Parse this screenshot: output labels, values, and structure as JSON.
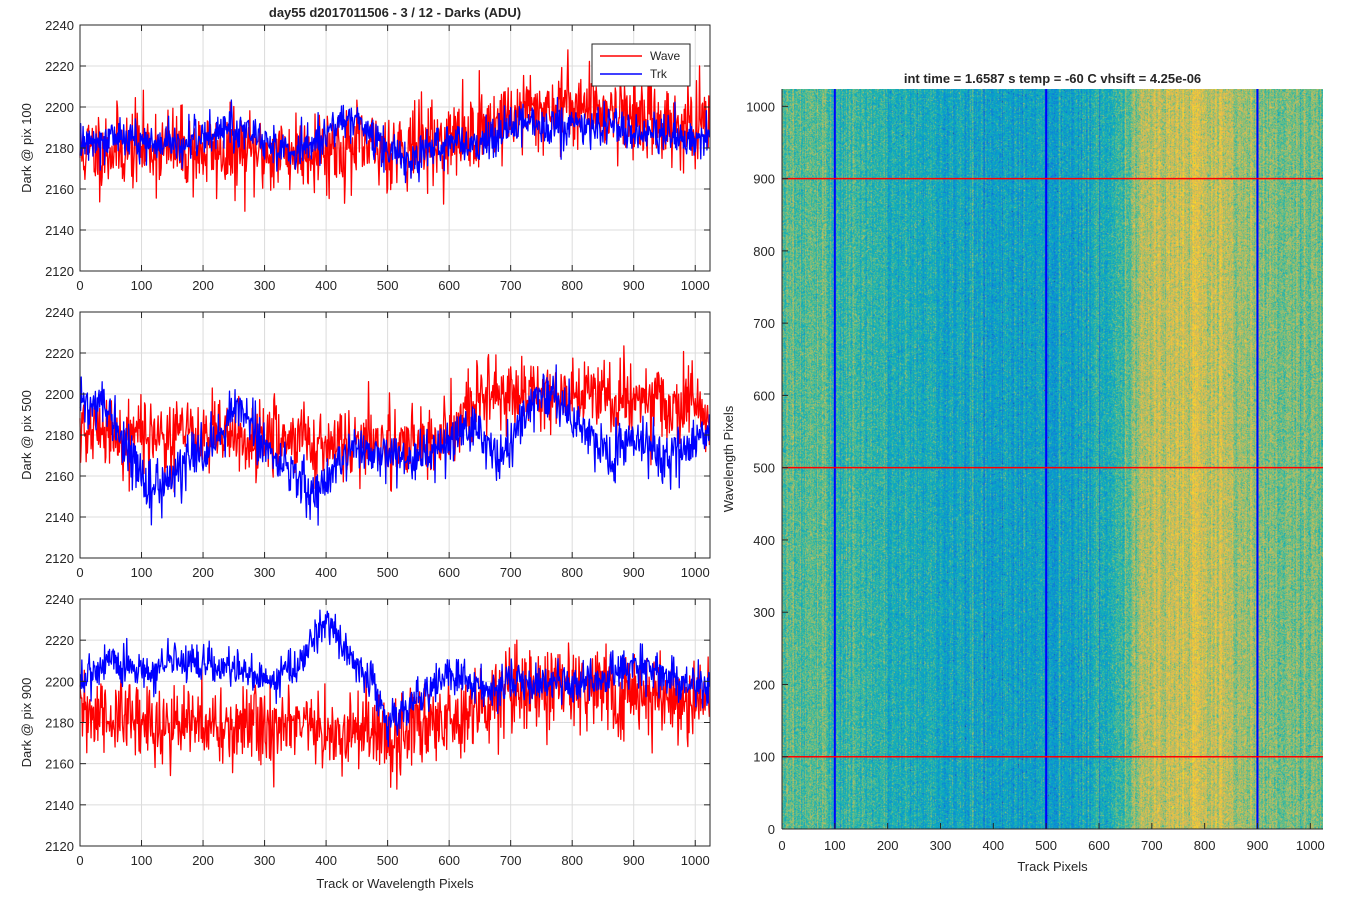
{
  "figure": {
    "title": "day55 d2017011506 - 3 / 12 - Darks (ADU)"
  },
  "chart_data": [
    {
      "id": "panel-pix100",
      "type": "line",
      "ylabel": "Dark @ pix 100",
      "xlabel": "",
      "xlim": [
        0,
        1024
      ],
      "ylim": [
        2120,
        2240
      ],
      "xticks": [
        0,
        100,
        200,
        300,
        400,
        500,
        600,
        700,
        800,
        900,
        1000
      ],
      "yticks": [
        2120,
        2140,
        2160,
        2180,
        2200,
        2220,
        2240
      ],
      "grid": true,
      "legend": {
        "show": true,
        "placement": "top-right"
      },
      "series": [
        {
          "name": "Wave",
          "color": "#ff0000",
          "mean": [
            [
              0,
              2178
            ],
            [
              100,
              2181
            ],
            [
              200,
              2178
            ],
            [
              300,
              2177
            ],
            [
              400,
              2180
            ],
            [
              500,
              2180
            ],
            [
              600,
              2183
            ],
            [
              660,
              2190
            ],
            [
              700,
              2196
            ],
            [
              800,
              2202
            ],
            [
              900,
              2196
            ],
            [
              1024,
              2188
            ]
          ],
          "noise_sd": 10,
          "seed": 11
        },
        {
          "name": "Trk",
          "color": "#0000ff",
          "mean": [
            [
              0,
              2182
            ],
            [
              50,
              2186
            ],
            [
              100,
              2183
            ],
            [
              150,
              2181
            ],
            [
              250,
              2190
            ],
            [
              300,
              2184
            ],
            [
              350,
              2178
            ],
            [
              400,
              2186
            ],
            [
              450,
              2195
            ],
            [
              500,
              2178
            ],
            [
              540,
              2175
            ],
            [
              600,
              2184
            ],
            [
              650,
              2180
            ],
            [
              700,
              2190
            ],
            [
              800,
              2192
            ],
            [
              900,
              2188
            ],
            [
              1024,
              2184
            ]
          ],
          "noise_sd": 5,
          "seed": 12
        }
      ]
    },
    {
      "id": "panel-pix500",
      "type": "line",
      "ylabel": "Dark @ pix 500",
      "xlabel": "",
      "xlim": [
        0,
        1024
      ],
      "ylim": [
        2120,
        2240
      ],
      "xticks": [
        0,
        100,
        200,
        300,
        400,
        500,
        600,
        700,
        800,
        900,
        1000
      ],
      "yticks": [
        2120,
        2140,
        2160,
        2180,
        2200,
        2220,
        2240
      ],
      "grid": true,
      "legend": {
        "show": false
      },
      "series": [
        {
          "name": "Wave",
          "color": "#ff0000",
          "mean": [
            [
              0,
              2182
            ],
            [
              100,
              2180
            ],
            [
              200,
              2180
            ],
            [
              300,
              2178
            ],
            [
              400,
              2177
            ],
            [
              500,
              2176
            ],
            [
              600,
              2178
            ],
            [
              640,
              2196
            ],
            [
              700,
              2200
            ],
            [
              800,
              2201
            ],
            [
              900,
              2198
            ],
            [
              1024,
              2190
            ]
          ],
          "noise_sd": 9,
          "seed": 21
        },
        {
          "name": "Trk",
          "color": "#0000ff",
          "mean": [
            [
              0,
              2195
            ],
            [
              40,
              2193
            ],
            [
              80,
              2172
            ],
            [
              120,
              2152
            ],
            [
              150,
              2160
            ],
            [
              200,
              2172
            ],
            [
              260,
              2195
            ],
            [
              300,
              2175
            ],
            [
              380,
              2150
            ],
            [
              430,
              2172
            ],
            [
              500,
              2168
            ],
            [
              560,
              2168
            ],
            [
              640,
              2185
            ],
            [
              680,
              2170
            ],
            [
              700,
              2178
            ],
            [
              760,
              2204
            ],
            [
              800,
              2190
            ],
            [
              860,
              2168
            ],
            [
              900,
              2180
            ],
            [
              960,
              2168
            ],
            [
              1024,
              2182
            ]
          ],
          "noise_sd": 6,
          "seed": 22
        }
      ]
    },
    {
      "id": "panel-pix900",
      "type": "line",
      "ylabel": "Dark @ pix 900",
      "xlabel": "Track or Wavelength Pixels",
      "xlim": [
        0,
        1024
      ],
      "ylim": [
        2120,
        2240
      ],
      "xticks": [
        0,
        100,
        200,
        300,
        400,
        500,
        600,
        700,
        800,
        900,
        1000
      ],
      "yticks": [
        2120,
        2140,
        2160,
        2180,
        2200,
        2220,
        2240
      ],
      "grid": true,
      "legend": {
        "show": false
      },
      "series": [
        {
          "name": "Wave",
          "color": "#ff0000",
          "mean": [
            [
              0,
              2184
            ],
            [
              100,
              2180
            ],
            [
              200,
              2178
            ],
            [
              300,
              2178
            ],
            [
              400,
              2176
            ],
            [
              500,
              2172
            ],
            [
              600,
              2182
            ],
            [
              700,
              2198
            ],
            [
              800,
              2197
            ],
            [
              900,
              2194
            ],
            [
              1024,
              2190
            ]
          ],
          "noise_sd": 10,
          "seed": 31
        },
        {
          "name": "Trk",
          "color": "#0000ff",
          "mean": [
            [
              0,
              2200
            ],
            [
              50,
              2212
            ],
            [
              100,
              2203
            ],
            [
              150,
              2210
            ],
            [
              250,
              2205
            ],
            [
              300,
              2200
            ],
            [
              360,
              2210
            ],
            [
              400,
              2228
            ],
            [
              440,
              2212
            ],
            [
              480,
              2195
            ],
            [
              500,
              2180
            ],
            [
              540,
              2188
            ],
            [
              600,
              2203
            ],
            [
              650,
              2196
            ],
            [
              700,
              2200
            ],
            [
              800,
              2198
            ],
            [
              900,
              2208
            ],
            [
              1024,
              2195
            ]
          ],
          "noise_sd": 5,
          "seed": 32
        }
      ]
    },
    {
      "id": "panel-image",
      "type": "heatmap",
      "title": "int time = 1.6587 s   temp = -60 C   vhsift = 4.25e-06",
      "xlabel": "Track Pixels",
      "ylabel": "Wavelength Pixels",
      "xlim": [
        0,
        1024
      ],
      "ylim": [
        0,
        1024
      ],
      "xticks": [
        0,
        100,
        200,
        300,
        400,
        500,
        600,
        700,
        800,
        900,
        1000
      ],
      "yticks": [
        0,
        100,
        200,
        300,
        400,
        500,
        600,
        700,
        800,
        900,
        1000
      ],
      "colormap": "parula",
      "column_profile": [
        [
          0,
          0.52
        ],
        [
          60,
          0.48
        ],
        [
          100,
          0.45
        ],
        [
          200,
          0.4
        ],
        [
          300,
          0.36
        ],
        [
          400,
          0.34
        ],
        [
          500,
          0.33
        ],
        [
          600,
          0.38
        ],
        [
          640,
          0.44
        ],
        [
          680,
          0.64
        ],
        [
          760,
          0.68
        ],
        [
          820,
          0.64
        ],
        [
          900,
          0.56
        ],
        [
          1024,
          0.52
        ]
      ],
      "vertical_lines": {
        "x": [
          100,
          500,
          900
        ],
        "color": "#0000ff"
      },
      "horizontal_lines": {
        "y": [
          100,
          500,
          900
        ],
        "color": "#ff0000"
      }
    }
  ]
}
